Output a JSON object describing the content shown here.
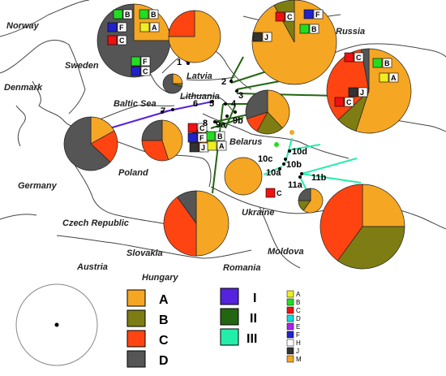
{
  "countries": [
    {
      "name": "Norway"
    },
    {
      "name": "Sweden"
    },
    {
      "name": "Denmark"
    },
    {
      "name": "Russia"
    },
    {
      "name": "Latvia"
    },
    {
      "name": "Lithuania"
    },
    {
      "name": "Baltic Sea"
    },
    {
      "name": "Belarus"
    },
    {
      "name": "Germany"
    },
    {
      "name": "Poland"
    },
    {
      "name": "Czech Republic"
    },
    {
      "name": "Slovakia"
    },
    {
      "name": "Austria"
    },
    {
      "name": "Hungary"
    },
    {
      "name": "Ukraine"
    },
    {
      "name": "Romania"
    },
    {
      "name": "Moldova"
    }
  ],
  "sites": [
    {
      "id": "1"
    },
    {
      "id": "2"
    },
    {
      "id": "3"
    },
    {
      "id": "4"
    },
    {
      "id": "5"
    },
    {
      "id": "6"
    },
    {
      "id": "7"
    },
    {
      "id": "8"
    },
    {
      "id": "9a"
    },
    {
      "id": "9b"
    },
    {
      "id": "10a"
    },
    {
      "id": "10b"
    },
    {
      "id": "10c"
    },
    {
      "id": "10d"
    },
    {
      "id": "11a"
    },
    {
      "id": "11b"
    }
  ],
  "flag_labels": [
    "B",
    "F",
    "C",
    "A",
    "B",
    "F",
    "C",
    "F",
    "J",
    "B",
    "C",
    "B",
    "A",
    "J",
    "C",
    "C",
    "B",
    "F",
    "J",
    "A",
    "C"
  ],
  "legend_clusters": [
    {
      "label": "A",
      "color": "#F5A623"
    },
    {
      "label": "B",
      "color": "#7D7D13"
    },
    {
      "label": "C",
      "color": "#FF4411"
    },
    {
      "label": "D",
      "color": "#555555"
    }
  ],
  "legend_lines": [
    {
      "label": "I",
      "color": "#5522DD"
    },
    {
      "label": "II",
      "color": "#226611"
    },
    {
      "label": "III",
      "color": "#22EEAA"
    }
  ],
  "legend_haplo": [
    {
      "label": "A",
      "color": "#EEEE22"
    },
    {
      "label": "B",
      "color": "#22DD22"
    },
    {
      "label": "C",
      "color": "#EE1111"
    },
    {
      "label": "D",
      "color": "#11DDDD"
    },
    {
      "label": "E",
      "color": "#AA22EE"
    },
    {
      "label": "F",
      "color": "#2222CC"
    },
    {
      "label": "H",
      "color": "#FFFFFF"
    },
    {
      "label": "J",
      "color": "#333333"
    },
    {
      "label": "M",
      "color": "#F5A623"
    }
  ],
  "pie_data": [
    {
      "site": "Sweden",
      "A": 0.25,
      "B": 0,
      "C": 0,
      "D": 0.75
    },
    {
      "site": "Latvia",
      "A": 0.75,
      "B": 0,
      "C": 0.25,
      "D": 0
    },
    {
      "site": "Russia NW",
      "A": 0.92,
      "B": 0.08,
      "C": 0,
      "D": 0
    },
    {
      "site": "Russia E",
      "A": 0.55,
      "B": 0.08,
      "C": 0.34,
      "D": 0.03
    },
    {
      "site": "Latvia small",
      "A": 0.25,
      "B": 0.05,
      "C": 0,
      "D": 0.7
    },
    {
      "site": "Belarus N",
      "A": 0.38,
      "B": 0.2,
      "C": 0.12,
      "D": 0.3
    },
    {
      "site": "Germany",
      "A": 0.17,
      "B": 0,
      "C": 0.2,
      "D": 0.63
    },
    {
      "site": "Poland",
      "A": 0.45,
      "B": 0,
      "C": 0.3,
      "D": 0.25
    },
    {
      "site": "Belarus small",
      "A": 0.5,
      "B": 0,
      "C": 0.15,
      "D": 0.35
    },
    {
      "site": "Ukraine W",
      "A": 1,
      "B": 0,
      "C": 0,
      "D": 0
    },
    {
      "site": "Slovakia",
      "A": 0.5,
      "B": 0,
      "C": 0.4,
      "D": 0.1
    },
    {
      "site": "Moldova",
      "A": 0.25,
      "B": 0.35,
      "C": 0.4,
      "D": 0
    },
    {
      "site": "Ukraine small",
      "A": 0.6,
      "B": 0.15,
      "C": 0,
      "D": 0.25
    }
  ]
}
